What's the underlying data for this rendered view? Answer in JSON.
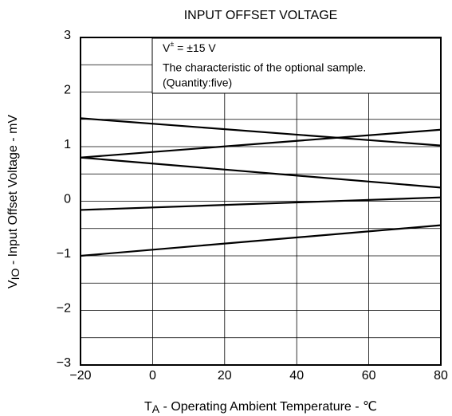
{
  "chart_data": {
    "type": "line",
    "title": "INPUT OFFSET VOLTAGE",
    "xlabel": {
      "symbol": "T",
      "sub": "A",
      "text": " - Operating Ambient Temperature - ℃"
    },
    "ylabel": {
      "symbol": "V",
      "sub": "IO",
      "text": " - Input Offset Voltage - mV"
    },
    "annotation": {
      "base": "V",
      "sup": "±",
      "text": " = ±15 V",
      "lines": [
        "The characteristic of the optional sample.",
        "(Quantity:five)"
      ]
    },
    "x": [
      -20,
      80
    ],
    "series": [
      {
        "color": "#000000",
        "values": [
          1.52,
          1.02
        ]
      },
      {
        "color": "#000000",
        "values": [
          0.8,
          1.31
        ]
      },
      {
        "color": "#000000",
        "values": [
          0.8,
          0.25
        ]
      },
      {
        "color": "#000000",
        "values": [
          -0.16,
          0.07
        ]
      },
      {
        "color": "#000000",
        "values": [
          -1.0,
          -0.44
        ]
      }
    ],
    "xlim": [
      -20,
      80
    ],
    "xticks": [
      {
        "value": -20,
        "label": "−20"
      },
      0,
      20,
      40,
      60,
      80
    ],
    "ylim": [
      -3,
      3
    ],
    "yticks": [
      {
        "value": -3,
        "label": "−3"
      },
      {
        "value": -2,
        "label": "−2"
      },
      {
        "value": -1,
        "label": "−1"
      },
      0,
      1,
      2,
      3
    ],
    "ygrid": [
      -2.5,
      -1.5,
      -0.5,
      0.5,
      1.5,
      2.5
    ],
    "grid": true
  }
}
